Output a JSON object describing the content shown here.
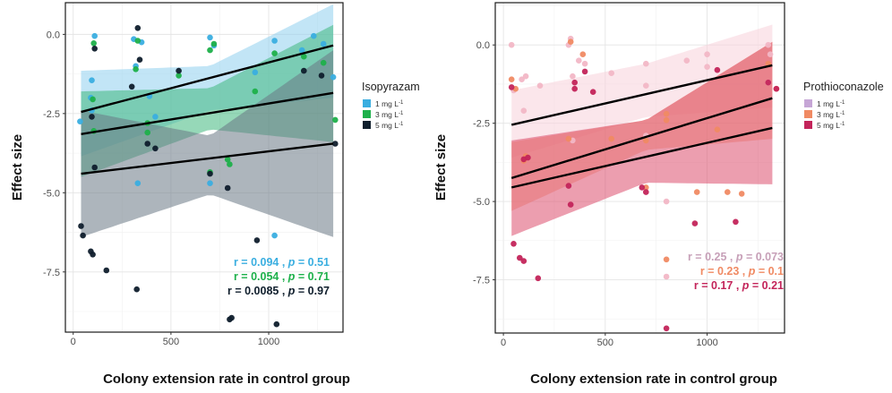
{
  "chart_data": [
    {
      "type": "scatter",
      "panel": "left",
      "xlabel": "Colony extension rate in control group",
      "ylabel": "Effect size",
      "xlim": [
        -40,
        1380
      ],
      "ylim": [
        -9.4,
        1.0
      ],
      "xticks": [
        0,
        500,
        1000
      ],
      "yticks": [
        0.0,
        -2.5,
        -5.0,
        -7.5
      ],
      "ytick_labels": [
        "0.0",
        "-2.5",
        "-5.0",
        "-7.5"
      ],
      "grid": true,
      "legend": {
        "title": "Isopyrazam",
        "placement": "right",
        "entries": [
          {
            "base": "1 mg L",
            "sup": "-1",
            "color": "#3aaee0"
          },
          {
            "base": "3 mg L",
            "sup": "-1",
            "color": "#1db04a"
          },
          {
            "base": "5 mg L",
            "sup": "-1",
            "color": "#0f1e2c"
          }
        ]
      },
      "stats": [
        {
          "r_value": "0.094",
          "p_value": "0.51",
          "color": "#3aaee0"
        },
        {
          "r_value": "0.054",
          "p_value": "0.71",
          "color": "#1db04a"
        },
        {
          "r_value": "0.0085",
          "p_value": "0.97",
          "color": "#0f1e2c"
        }
      ],
      "series": [
        {
          "name": "1 mg L-1",
          "color": "#3aaee0",
          "band_color": "#8fd0ef",
          "fit": {
            "x": [
              40,
              1330
            ],
            "y": [
              -2.45,
              -0.35
            ]
          },
          "band": {
            "x": [
              40,
              700,
              1330
            ],
            "lower": [
              -3.85,
              -2.4,
              -2.0
            ],
            "upper": [
              -1.15,
              -1.0,
              0.95
            ]
          },
          "points": [
            [
              35,
              -2.75
            ],
            [
              90,
              -2.0
            ],
            [
              95,
              -1.45
            ],
            [
              110,
              -0.05
            ],
            [
              95,
              -2.4
            ],
            [
              310,
              -0.15
            ],
            [
              320,
              -1.0
            ],
            [
              330,
              -4.7
            ],
            [
              350,
              -0.25
            ],
            [
              390,
              -1.95
            ],
            [
              420,
              -2.6
            ],
            [
              700,
              -0.1
            ],
            [
              700,
              -4.7
            ],
            [
              720,
              -0.35
            ],
            [
              930,
              -1.2
            ],
            [
              1030,
              -0.2
            ],
            [
              1030,
              -6.35
            ],
            [
              1170,
              -0.5
            ],
            [
              1230,
              -0.05
            ],
            [
              1280,
              -0.3
            ],
            [
              1330,
              -1.35
            ]
          ]
        },
        {
          "name": "3 mg L-1",
          "color": "#1db04a",
          "band_color": "#3fb87d",
          "fit": {
            "x": [
              40,
              1330
            ],
            "y": [
              -3.15,
              -1.85
            ]
          },
          "band": {
            "x": [
              40,
              700,
              1330
            ],
            "lower": [
              -4.5,
              -3.0,
              -3.4
            ],
            "upper": [
              -1.8,
              -1.7,
              0.3
            ]
          },
          "points": [
            [
              100,
              -2.05
            ],
            [
              105,
              -3.05
            ],
            [
              105,
              -0.28
            ],
            [
              320,
              -1.1
            ],
            [
              330,
              -0.2
            ],
            [
              380,
              -2.8
            ],
            [
              380,
              -3.1
            ],
            [
              540,
              -1.3
            ],
            [
              700,
              -4.35
            ],
            [
              700,
              -0.5
            ],
            [
              720,
              -0.3
            ],
            [
              790,
              -3.95
            ],
            [
              800,
              -4.1
            ],
            [
              930,
              -1.8
            ],
            [
              1030,
              -0.6
            ],
            [
              1180,
              -0.7
            ],
            [
              1280,
              -0.9
            ],
            [
              1340,
              -2.7
            ]
          ]
        },
        {
          "name": "5 mg L-1",
          "color": "#0f1e2c",
          "band_color": "#697885",
          "fit": {
            "x": [
              40,
              1330
            ],
            "y": [
              -4.4,
              -3.45
            ]
          },
          "band": {
            "x": [
              40,
              700,
              1330
            ],
            "lower": [
              -6.4,
              -5.05,
              -6.4
            ],
            "upper": [
              -2.4,
              -3.2,
              -0.5
            ]
          },
          "points": [
            [
              40,
              -6.05
            ],
            [
              50,
              -6.35
            ],
            [
              90,
              -6.85
            ],
            [
              95,
              -2.6
            ],
            [
              100,
              -6.95
            ],
            [
              110,
              -0.45
            ],
            [
              110,
              -4.2
            ],
            [
              170,
              -7.45
            ],
            [
              300,
              -1.65
            ],
            [
              325,
              -8.05
            ],
            [
              330,
              0.2
            ],
            [
              340,
              -0.8
            ],
            [
              380,
              -3.45
            ],
            [
              420,
              -3.6
            ],
            [
              540,
              -1.15
            ],
            [
              700,
              -4.4
            ],
            [
              790,
              -4.85
            ],
            [
              800,
              -9.0
            ],
            [
              810,
              -8.95
            ],
            [
              940,
              -6.5
            ],
            [
              1040,
              -9.15
            ],
            [
              1180,
              -1.15
            ],
            [
              1270,
              -1.3
            ],
            [
              1340,
              -3.45
            ]
          ]
        }
      ]
    },
    {
      "type": "scatter",
      "panel": "right",
      "xlabel": "Colony extension rate in control group",
      "ylabel": "Effect size",
      "xlim": [
        -40,
        1380
      ],
      "ylim": [
        -9.2,
        1.35
      ],
      "xticks": [
        0,
        500,
        1000
      ],
      "yticks": [
        0.0,
        -2.5,
        -5.0,
        -7.5
      ],
      "ytick_labels": [
        "0.0",
        "-2.5",
        "-5.0",
        "-7.5"
      ],
      "grid": true,
      "legend": {
        "title": "Prothioconazole",
        "placement": "right",
        "entries": [
          {
            "base": "1 mg L",
            "sup": "-1",
            "color": "#c6a6d6"
          },
          {
            "base": "3 mg L",
            "sup": "-1",
            "color": "#f08a63"
          },
          {
            "base": "5 mg L",
            "sup": "-1",
            "color": "#c3245a"
          }
        ]
      },
      "stats": [
        {
          "r_value": "0.25",
          "p_value": "0.073",
          "color": "#c7a0b8"
        },
        {
          "r_value": "0.23",
          "p_value": "0.1",
          "color": "#f08a63"
        },
        {
          "r_value": "0.17",
          "p_value": "0.21",
          "color": "#c3245a"
        }
      ],
      "series": [
        {
          "name": "1 mg L-1",
          "color": "#f2b7c6",
          "band_color": "#f7d2da",
          "fit": {
            "x": [
              40,
              1320
            ],
            "y": [
              -2.55,
              -0.65
            ]
          },
          "band": {
            "x": [
              40,
              700,
              1320
            ],
            "lower": [
              -3.6,
              -2.3,
              -2.0
            ],
            "upper": [
              -1.45,
              -0.6,
              0.65
            ]
          },
          "points": [
            [
              40,
              0.0
            ],
            [
              50,
              -1.45
            ],
            [
              90,
              -1.1
            ],
            [
              100,
              -2.1
            ],
            [
              110,
              -1.0
            ],
            [
              180,
              -1.3
            ],
            [
              320,
              0.0
            ],
            [
              330,
              0.2
            ],
            [
              340,
              -1.0
            ],
            [
              340,
              -3.05
            ],
            [
              370,
              -0.5
            ],
            [
              400,
              -0.6
            ],
            [
              530,
              -0.9
            ],
            [
              700,
              -0.6
            ],
            [
              700,
              -1.3
            ],
            [
              700,
              -2.9
            ],
            [
              900,
              -0.5
            ],
            [
              1000,
              -0.3
            ],
            [
              1000,
              -0.7
            ],
            [
              1300,
              0.0
            ],
            [
              1300,
              -1.2
            ],
            [
              1310,
              -0.3
            ],
            [
              800,
              -7.4
            ],
            [
              800,
              -5.0
            ]
          ]
        },
        {
          "name": "3 mg L-1",
          "color": "#f08a63",
          "band_color": "#f6a882",
          "fit": {
            "x": [
              40,
              1320
            ],
            "y": [
              -4.25,
              -1.7
            ]
          },
          "band": {
            "x": [
              40,
              700,
              1320
            ],
            "lower": [
              -5.3,
              -3.35,
              -3.0
            ],
            "upper": [
              -3.1,
              -2.4,
              0.1
            ]
          },
          "points": [
            [
              40,
              -1.1
            ],
            [
              60,
              -1.4
            ],
            [
              100,
              -3.7
            ],
            [
              110,
              -3.55
            ],
            [
              320,
              -3.0
            ],
            [
              330,
              0.1
            ],
            [
              390,
              -0.3
            ],
            [
              530,
              -3.0
            ],
            [
              700,
              -3.05
            ],
            [
              700,
              -4.55
            ],
            [
              800,
              -2.2
            ],
            [
              800,
              -2.4
            ],
            [
              800,
              -6.85
            ],
            [
              950,
              -4.7
            ],
            [
              1050,
              -2.7
            ],
            [
              1100,
              -4.7
            ],
            [
              1170,
              -4.75
            ],
            [
              1300,
              -0.6
            ],
            [
              1340,
              -1.4
            ]
          ]
        },
        {
          "name": "5 mg L-1",
          "color": "#c3245a",
          "band_color": "#dc4f6d",
          "fit": {
            "x": [
              40,
              1320
            ],
            "y": [
              -4.55,
              -2.65
            ]
          },
          "band": {
            "x": [
              40,
              700,
              1320
            ],
            "lower": [
              -6.1,
              -4.4,
              -4.45
            ],
            "upper": [
              -3.05,
              -2.4,
              0.1
            ]
          },
          "points": [
            [
              40,
              -1.35
            ],
            [
              50,
              -6.35
            ],
            [
              80,
              -6.8
            ],
            [
              100,
              -6.9
            ],
            [
              100,
              -3.65
            ],
            [
              120,
              -3.6
            ],
            [
              170,
              -7.45
            ],
            [
              320,
              -4.5
            ],
            [
              330,
              -5.1
            ],
            [
              350,
              -1.2
            ],
            [
              350,
              -1.4
            ],
            [
              400,
              -0.85
            ],
            [
              440,
              -1.5
            ],
            [
              680,
              -4.55
            ],
            [
              700,
              -4.7
            ],
            [
              800,
              -9.05
            ],
            [
              940,
              -5.7
            ],
            [
              1050,
              -0.8
            ],
            [
              1140,
              -5.65
            ],
            [
              1300,
              -1.2
            ],
            [
              1340,
              -1.4
            ]
          ]
        }
      ]
    }
  ]
}
